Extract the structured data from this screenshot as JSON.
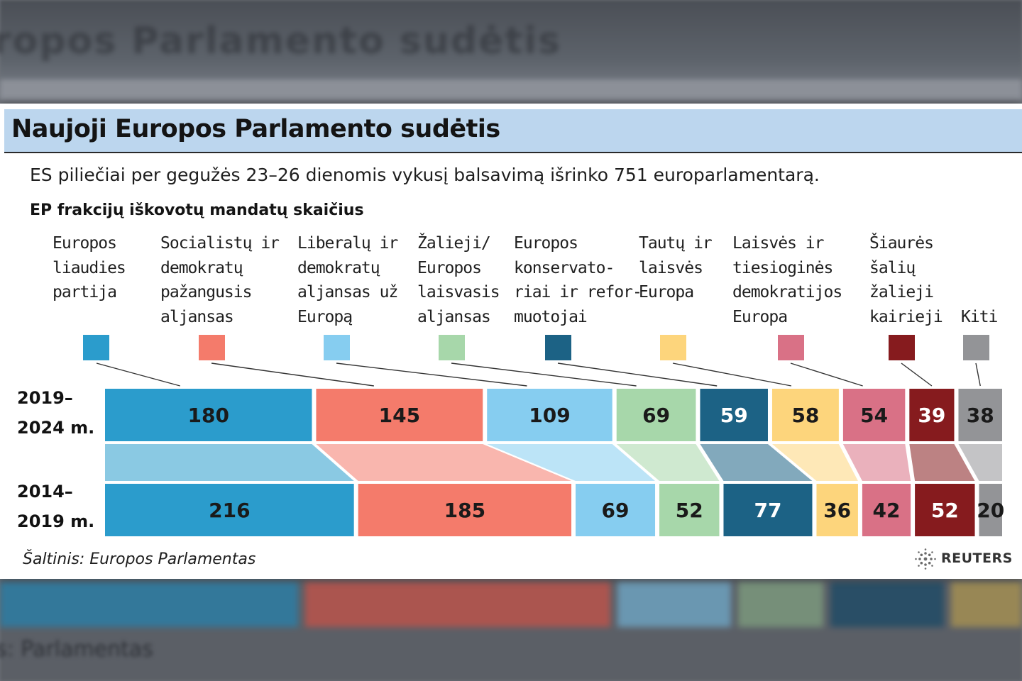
{
  "page": {
    "title": "Naujoji Europos Parlamento sudėtis",
    "subtitle": "ES piliečiai per gegužės 23–26 dienomis vykusį balsavimą išrinko 751 europarlamentarą.",
    "source": "Šaltinis: Europos Parlamentas",
    "logo_text": "REUTERS"
  },
  "background": {
    "ghost_title": "ropos Parlamento sudėtis",
    "ghost_source": "s: Parlamentas"
  },
  "chart_data": {
    "type": "bar",
    "title": "EP frakcijų iškovotų mandatų skaičius",
    "stacked": true,
    "orientation": "horizontal",
    "rows": [
      {
        "label": "2019–\n2024 m.",
        "values": [
          180,
          145,
          109,
          69,
          59,
          58,
          54,
          39,
          38
        ]
      },
      {
        "label": "2014–\n2019 m.",
        "values": [
          216,
          185,
          69,
          52,
          77,
          36,
          42,
          52,
          20
        ]
      }
    ],
    "series": [
      {
        "name": "Europos\nliaudies\npartija",
        "color": "#2b9ccc",
        "label_color": "#1a1a1a"
      },
      {
        "name": "Socialistų ir\ndemokratų\npažangusis\naljansas",
        "color": "#f47b6b",
        "label_color": "#1a1a1a"
      },
      {
        "name": "Liberalų ir\ndemokratų\naljansas už\nEuropą",
        "color": "#86cdf0",
        "label_color": "#1a1a1a"
      },
      {
        "name": "Žalieji/\nEuropos\nlaisvasis\naljansas",
        "color": "#a7d7aa",
        "label_color": "#1a1a1a"
      },
      {
        "name": "Europos\nkonservato-\nriai ir refor-\nmuotojai",
        "color": "#1c6285",
        "label_color": "#ffffff"
      },
      {
        "name": "Tautų ir\nlaisvės\nEuropa",
        "color": "#fdd57c",
        "label_color": "#1a1a1a"
      },
      {
        "name": "Laisvės ir\ntiesioginės\ndemokratijos\nEuropa",
        "color": "#d97186",
        "label_color": "#1a1a1a"
      },
      {
        "name": "Šiaurės\nšalių\nžalieji\nkairieji",
        "color": "#861b1e",
        "label_color": "#ffffff"
      },
      {
        "name": "Kiti",
        "color": "#939497",
        "label_color": "#1a1a1a"
      }
    ],
    "legend_position": "top",
    "grid": false
  }
}
